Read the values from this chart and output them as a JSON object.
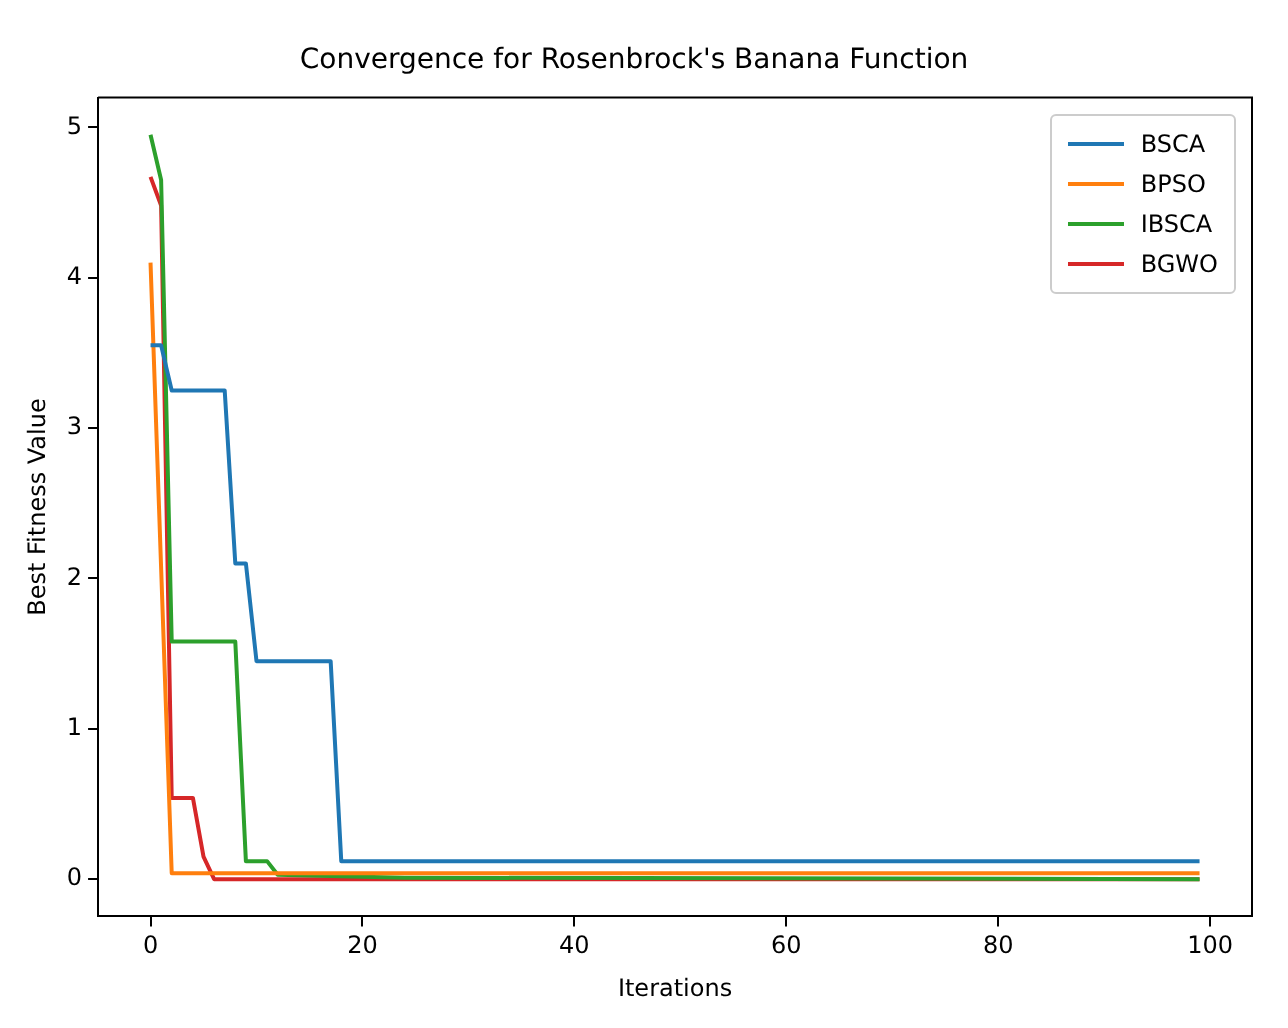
{
  "chart_data": {
    "type": "line",
    "title": "Convergence for Rosenbrock's Banana Function",
    "xlabel": "Iterations",
    "ylabel": "Best Fitness Value",
    "xlim": [
      -4.95,
      103.95
    ],
    "xticks": [
      0,
      20,
      40,
      60,
      80,
      100
    ],
    "ylim": [
      -0.2475,
      5.1975
    ],
    "yticks": [
      0,
      1,
      2,
      3,
      4,
      5
    ],
    "grid": false,
    "legend": "top right",
    "marker": "none",
    "line_style": "solid",
    "series": [
      {
        "name": "BSCA",
        "color": "#1f77b4",
        "x": [
          0,
          1,
          2,
          7,
          8,
          9,
          10,
          17,
          18,
          99
        ],
        "values": [
          3.55,
          3.55,
          3.25,
          3.25,
          2.1,
          2.1,
          1.45,
          1.45,
          0.12,
          0.12
        ]
      },
      {
        "name": "BPSO",
        "color": "#ff7f0e",
        "x": [
          0,
          2,
          99
        ],
        "values": [
          4.1,
          0.04,
          0.04
        ]
      },
      {
        "name": "IBSCA",
        "color": "#2ca02c",
        "x": [
          0,
          1,
          2,
          8,
          9,
          11,
          12,
          24,
          99
        ],
        "values": [
          4.95,
          4.65,
          1.58,
          1.58,
          0.12,
          0.12,
          0.03,
          0.01,
          0.0
        ]
      },
      {
        "name": "BGWO",
        "color": "#d62728",
        "x": [
          0,
          1,
          2,
          4,
          5,
          6,
          99
        ],
        "values": [
          4.67,
          4.48,
          0.54,
          0.54,
          0.15,
          0.0,
          0.0
        ]
      }
    ]
  }
}
